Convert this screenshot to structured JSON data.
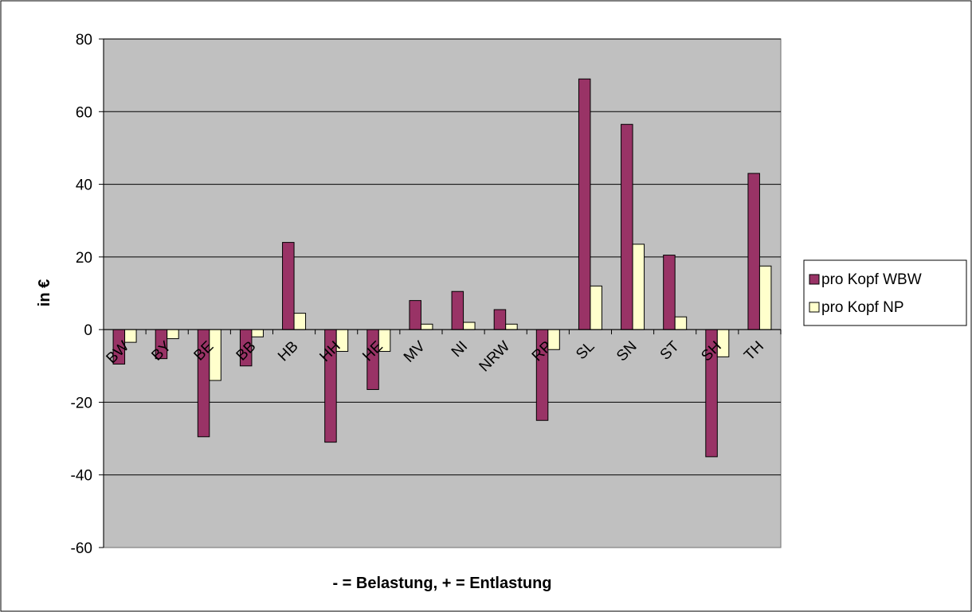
{
  "chart_data": {
    "type": "bar",
    "title": "",
    "xlabel": "- = Belastung, + = Entlastung",
    "ylabel": "in €",
    "ylim": [
      -60,
      80
    ],
    "yticks": [
      80,
      60,
      40,
      20,
      0,
      -20,
      -40,
      -60
    ],
    "grid": true,
    "legend_position": "right",
    "categories": [
      "BW",
      "BY",
      "BE",
      "BB",
      "HB",
      "HH",
      "HE",
      "MV",
      "NI",
      "NRW",
      "RP",
      "SL",
      "SN",
      "ST",
      "SH",
      "TH"
    ],
    "series": [
      {
        "name": "pro Kopf WBW",
        "color": "#993366",
        "values": [
          -9.5,
          -8,
          -29.5,
          -10,
          24,
          -31,
          -16.5,
          8,
          10.5,
          5.5,
          -25,
          69,
          56.5,
          20.5,
          -35,
          43
        ]
      },
      {
        "name": "pro Kopf NP",
        "color": "#ffffcc",
        "values": [
          -3.5,
          -2.5,
          -14,
          -2,
          4.5,
          -6,
          -6,
          1.5,
          2,
          1.5,
          -5.5,
          12,
          23.5,
          3.5,
          -7.5,
          17.5
        ]
      }
    ],
    "colors": {
      "plot_background": "#c0c0c0",
      "gridline": "#000000",
      "bar_outline": "#000000"
    }
  }
}
